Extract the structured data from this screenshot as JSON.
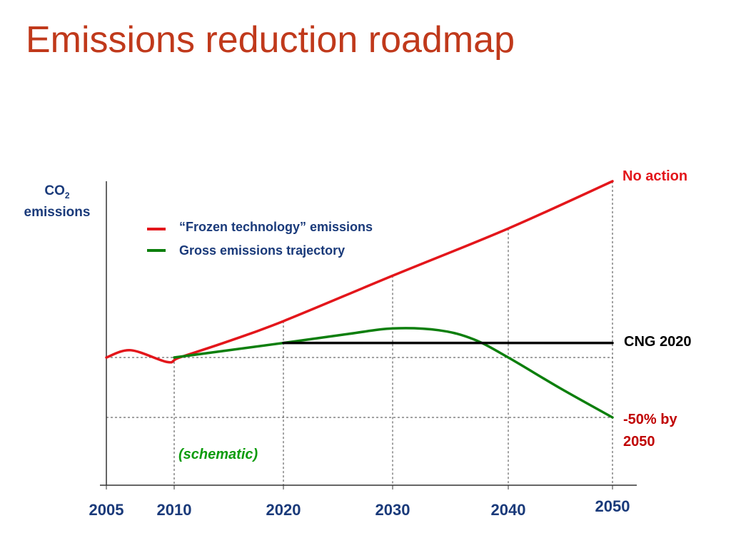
{
  "title": "Emissions reduction roadmap",
  "colors": {
    "title": "#c0391b",
    "frozen": "#e3161b",
    "gross": "#0d7f0d",
    "cng": "#000000",
    "axis_labels": "#1a3a7a",
    "target": "#c00000"
  },
  "legend": {
    "frozen_label": "“Frozen technology” emissions",
    "gross_label": "Gross emissions trajectory"
  },
  "y_axis": {
    "label_line1": "CO",
    "label_sub": "2",
    "label_line2": "emissions"
  },
  "annotations": {
    "no_action": "No action",
    "cng": "CNG 2020",
    "target_line1": "-50% by",
    "target_line2": "2050",
    "schematic": "(schematic)"
  },
  "chart_data": {
    "type": "line",
    "schematic": true,
    "xlim": [
      2005,
      2050
    ],
    "x_ticks": [
      "2005",
      "2010",
      "2020",
      "2030",
      "2040",
      "2050"
    ],
    "series": [
      {
        "name": "“Frozen technology” emissions",
        "color": "#e3161b",
        "points": [
          [
            2005,
            100
          ],
          [
            2006.8,
            104
          ],
          [
            2009.5,
            97.5
          ],
          [
            2010.5,
            100
          ],
          [
            2015,
            109
          ],
          [
            2020,
            120
          ],
          [
            2030,
            145
          ],
          [
            2040,
            171
          ],
          [
            2050,
            197
          ]
        ]
      },
      {
        "name": "Gross emissions trajectory",
        "color": "#0d7f0d",
        "points": [
          [
            2010,
            100
          ],
          [
            2020,
            108
          ],
          [
            2026,
            113
          ],
          [
            2030,
            116
          ],
          [
            2034,
            115
          ],
          [
            2037,
            110
          ],
          [
            2040,
            100
          ],
          [
            2045,
            83
          ],
          [
            2050,
            67
          ]
        ]
      },
      {
        "name": "CNG 2020",
        "color": "#000000",
        "points": [
          [
            2020,
            108
          ],
          [
            2050,
            108
          ]
        ]
      }
    ],
    "reference_lines": [
      {
        "type": "horizontal",
        "y": 100
      },
      {
        "type": "horizontal",
        "y": 67
      }
    ]
  }
}
